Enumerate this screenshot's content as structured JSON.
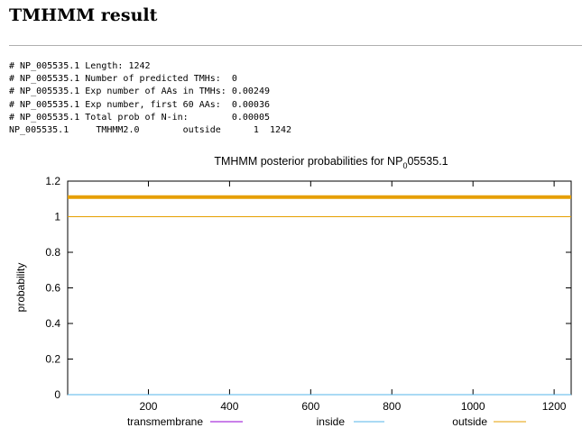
{
  "page": {
    "heading": "TMHMM result"
  },
  "summary_lines": [
    "# NP_005535.1 Length: 1242",
    "# NP_005535.1 Number of predicted TMHs:  0",
    "# NP_005535.1 Exp number of AAs in TMHs: 0.00249",
    "# NP_005535.1 Exp number, first 60 AAs:  0.00036",
    "# NP_005535.1 Total prob of N-in:        0.00005",
    "NP_005535.1     TMHMM2.0        outside      1  1242"
  ],
  "chart_data": {
    "type": "line",
    "title_main": "TMHMM posterior probabilities for NP",
    "title_sub": "0",
    "title_tail": "05535.1",
    "ylabel": "probability",
    "xlabel": "",
    "xlim": [
      1,
      1242
    ],
    "ylim": [
      0,
      1.2
    ],
    "xticks": [
      200,
      400,
      600,
      800,
      1000,
      1200
    ],
    "yticks": [
      0,
      0.2,
      0.4,
      0.6,
      0.8,
      1,
      1.2
    ],
    "ytick_labels": [
      "0",
      "0.2",
      "0.4",
      "0.6",
      "0.8",
      "1",
      "1.2"
    ],
    "series": [
      {
        "name": "transmembrane",
        "color": "#9400d3",
        "x": [
          1,
          1242
        ],
        "y": [
          0,
          0
        ]
      },
      {
        "name": "inside",
        "color": "#56b4e9",
        "x": [
          1,
          1242
        ],
        "y": [
          0,
          0
        ]
      },
      {
        "name": "outside",
        "color": "#e69f00",
        "x": [
          1,
          1242
        ],
        "y": [
          1,
          1
        ]
      }
    ],
    "bars": [
      {
        "name": "outside",
        "color": "#e69f00",
        "x_start": 1,
        "x_end": 1242,
        "y": 1.11
      }
    ],
    "legend_position": "bottom"
  }
}
